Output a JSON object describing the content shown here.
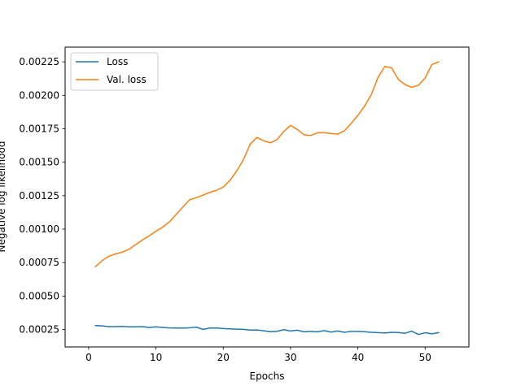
{
  "chart_data": {
    "type": "line",
    "title": "",
    "xlabel": "Epochs",
    "ylabel": "Negative log likelihood",
    "xlim": [
      -3.5,
      56.5
    ],
    "ylim": [
      0.00012,
      0.00236
    ],
    "xticks": [
      0,
      10,
      20,
      30,
      40,
      50
    ],
    "xtick_labels": [
      "0",
      "10",
      "20",
      "30",
      "40",
      "50"
    ],
    "yticks": [
      0.00025,
      0.0005,
      0.00075,
      0.001,
      0.00125,
      0.0015,
      0.00175,
      0.002,
      0.00225
    ],
    "ytick_labels": [
      "0.00025",
      "0.00050",
      "0.00075",
      "0.00100",
      "0.00125",
      "0.00150",
      "0.00175",
      "0.00200",
      "0.00225"
    ],
    "grid": false,
    "legend": "top-left",
    "series": [
      {
        "name": "Loss",
        "color": "#1f77b4",
        "x": [
          1,
          2,
          3,
          4,
          5,
          6,
          7,
          8,
          9,
          10,
          11,
          12,
          13,
          14,
          15,
          16,
          17,
          18,
          19,
          20,
          21,
          22,
          23,
          24,
          25,
          26,
          27,
          28,
          29,
          30,
          31,
          32,
          33,
          34,
          35,
          36,
          37,
          38,
          39,
          40,
          41,
          42,
          43,
          44,
          45,
          46,
          47,
          48,
          49,
          50,
          51,
          52
        ],
        "values": [
          0.00028,
          0.000277,
          0.000272,
          0.000272,
          0.000273,
          0.00027,
          0.00027,
          0.000272,
          0.000266,
          0.00027,
          0.000266,
          0.000262,
          0.000261,
          0.000261,
          0.000263,
          0.000268,
          0.000251,
          0.000261,
          0.000262,
          0.000257,
          0.000255,
          0.000253,
          0.000251,
          0.000246,
          0.000247,
          0.000241,
          0.000234,
          0.000237,
          0.000249,
          0.000239,
          0.000245,
          0.000233,
          0.000236,
          0.000233,
          0.000242,
          0.000231,
          0.000239,
          0.000229,
          0.000236,
          0.000236,
          0.000234,
          0.000229,
          0.000227,
          0.000224,
          0.000229,
          0.000228,
          0.000222,
          0.000238,
          0.000213,
          0.000226,
          0.000218,
          0.000227
        ]
      },
      {
        "name": "Val. loss",
        "color": "#ff7f0e",
        "x": [
          1,
          2,
          3,
          4,
          5,
          6,
          7,
          8,
          9,
          10,
          11,
          12,
          13,
          14,
          15,
          16,
          17,
          18,
          19,
          20,
          21,
          22,
          23,
          24,
          25,
          26,
          27,
          28,
          29,
          30,
          31,
          32,
          33,
          34,
          35,
          36,
          37,
          38,
          39,
          40,
          41,
          42,
          43,
          44,
          45,
          46,
          47,
          48,
          49,
          50,
          51,
          52
        ],
        "values": [
          0.00072,
          0.000765,
          0.000798,
          0.000815,
          0.000828,
          0.00085,
          0.000885,
          0.00092,
          0.00095,
          0.000985,
          0.001015,
          0.001055,
          0.00111,
          0.001165,
          0.00122,
          0.001235,
          0.001255,
          0.001275,
          0.00129,
          0.001315,
          0.001365,
          0.001435,
          0.00152,
          0.001635,
          0.001685,
          0.00166,
          0.001645,
          0.00167,
          0.00173,
          0.001775,
          0.001745,
          0.001705,
          0.0017,
          0.00172,
          0.00172,
          0.001715,
          0.00171,
          0.001735,
          0.00179,
          0.00185,
          0.00192,
          0.002005,
          0.002135,
          0.002215,
          0.002205,
          0.00212,
          0.00208,
          0.00206,
          0.002075,
          0.00213,
          0.00223,
          0.00225
        ]
      }
    ]
  }
}
